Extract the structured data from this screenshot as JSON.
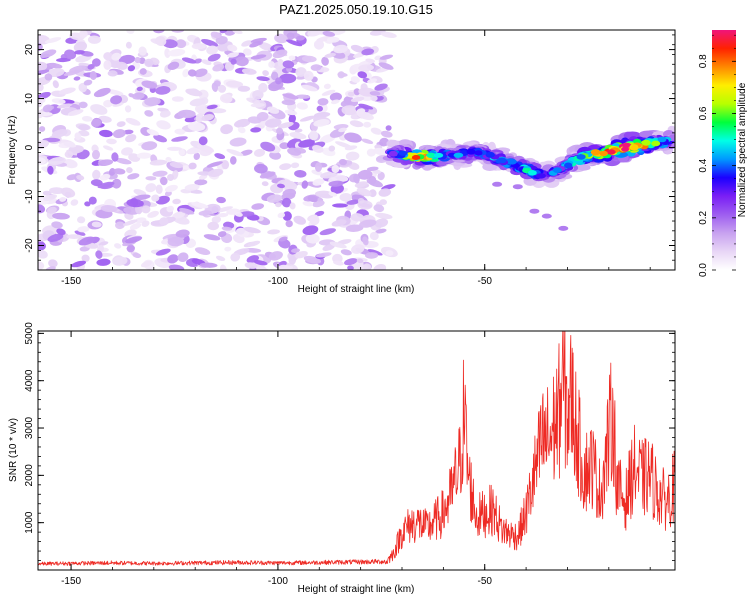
{
  "title": "PAZ1.2025.050.19.10.G15",
  "chart_data": [
    {
      "type": "heatmap",
      "xlabel": "Height of straight line (km)",
      "ylabel": "Frequency (Hz)",
      "xlim": [
        -158,
        -4
      ],
      "ylim": [
        -25,
        24
      ],
      "xticks": [
        -150,
        -100,
        -50
      ],
      "yticks": [
        20,
        10,
        0,
        -10,
        -20
      ],
      "colorbar": {
        "label": "Normalized spectral amplitude",
        "range": [
          0,
          0.92
        ],
        "ticks": [
          "0.0",
          "0.2",
          "0.4",
          "0.6",
          "0.8"
        ],
        "tick_values": [
          0,
          0.2,
          0.4,
          0.6,
          0.8
        ],
        "colors": [
          "#ffffff",
          "#e8d6f6",
          "#c8a2f0",
          "#9e5ef0",
          "#7a1ff5",
          "#1b00ff",
          "#0098ff",
          "#00ffe6",
          "#00ff3c",
          "#b8ff00",
          "#ffee00",
          "#ff8800",
          "#ff2200",
          "#f0147a"
        ]
      },
      "noise_region": {
        "x_range": [
          -158,
          -73
        ],
        "y_range": [
          -25,
          24
        ],
        "amplitude_range": [
          0.05,
          0.2
        ]
      },
      "signal_ridge": [
        {
          "x": -73,
          "y": -1.0,
          "amp": 0.3
        },
        {
          "x": -70,
          "y": -1.5,
          "amp": 0.45
        },
        {
          "x": -66,
          "y": -1.8,
          "amp": 0.75
        },
        {
          "x": -62,
          "y": -2.0,
          "amp": 0.55
        },
        {
          "x": -58,
          "y": -1.2,
          "amp": 0.35
        },
        {
          "x": -55,
          "y": -1.5,
          "amp": 0.4
        },
        {
          "x": -52,
          "y": -0.8,
          "amp": 0.35
        },
        {
          "x": -48,
          "y": -2.0,
          "amp": 0.4
        },
        {
          "x": -44,
          "y": -3.0,
          "amp": 0.45
        },
        {
          "x": -40,
          "y": -4.5,
          "amp": 0.45
        },
        {
          "x": -36,
          "y": -5.5,
          "amp": 0.4
        },
        {
          "x": -32,
          "y": -4.5,
          "amp": 0.35
        },
        {
          "x": -28,
          "y": -2.5,
          "amp": 0.45
        },
        {
          "x": -24,
          "y": -1.5,
          "amp": 0.65
        },
        {
          "x": -20,
          "y": -0.8,
          "amp": 0.75
        },
        {
          "x": -16,
          "y": 0.0,
          "amp": 0.85
        },
        {
          "x": -12,
          "y": 0.5,
          "amp": 0.7
        },
        {
          "x": -8,
          "y": 1.2,
          "amp": 0.5
        },
        {
          "x": -4,
          "y": 1.5,
          "amp": 0.3
        }
      ]
    },
    {
      "type": "line",
      "xlabel": "Height of straight line (km)",
      "ylabel": "SNR (10 * v/v)",
      "xlim": [
        -158,
        -4
      ],
      "ylim": [
        0,
        5050
      ],
      "xticks": [
        -150,
        -100,
        -50
      ],
      "yticks": [
        1000,
        2000,
        3000,
        4000,
        5000
      ],
      "color": "#ee2a24",
      "series": [
        {
          "x": [
            -158,
            -150,
            -140,
            -130,
            -120,
            -110,
            -100,
            -90,
            -80,
            -74,
            -72,
            -70,
            -68,
            -66,
            -64,
            -62,
            -60,
            -58,
            -56,
            -55,
            -54,
            -52,
            -50,
            -48,
            -46,
            -44,
            -42,
            -40,
            -38,
            -36,
            -34,
            -32,
            -31,
            -30,
            -29,
            -28,
            -26,
            -24,
            -22,
            -20,
            -19,
            -18,
            -16,
            -14,
            -12,
            -10,
            -8,
            -6,
            -4
          ],
          "y": [
            130,
            140,
            150,
            140,
            150,
            160,
            150,
            160,
            170,
            180,
            450,
            1000,
            1200,
            1250,
            1100,
            1300,
            1500,
            2000,
            2800,
            4200,
            2500,
            1400,
            1500,
            1600,
            1100,
            950,
            900,
            1500,
            2500,
            3400,
            3500,
            4200,
            5000,
            4100,
            4600,
            3800,
            2600,
            2800,
            2000,
            3500,
            4200,
            2200,
            1800,
            2700,
            2400,
            2500,
            2000,
            1800,
            2300
          ]
        }
      ]
    }
  ]
}
